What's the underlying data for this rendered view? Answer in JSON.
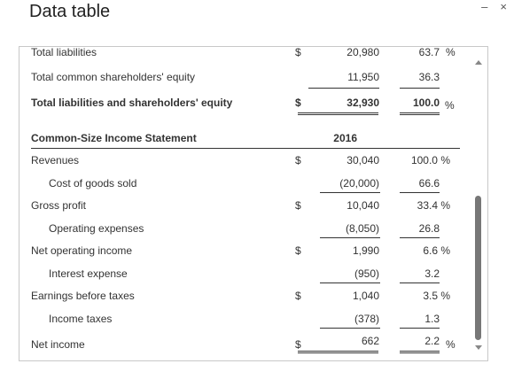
{
  "window": {
    "title": "Data table"
  },
  "top_icons": {
    "minimize": "–",
    "close": "×"
  },
  "balance_rows": [
    {
      "label": "Total liabilities",
      "dollar": "$",
      "value": "20,980",
      "pct": "63.7",
      "pct_sym": "%"
    },
    {
      "label": "Total common shareholders' equity",
      "dollar": "",
      "value": "11,950",
      "pct": "36.3",
      "pct_sym": ""
    },
    {
      "label": "Total liabilities and shareholders' equity",
      "dollar": "$",
      "value": "32,930",
      "pct": "100.0",
      "pct_sym": "%"
    }
  ],
  "income": {
    "header_label": "Common-Size Income Statement",
    "header_year": "2016",
    "rows": [
      {
        "label": "Revenues",
        "dollar": "$",
        "value": "30,040",
        "pct": "100.0 %"
      },
      {
        "label": "Cost of goods sold",
        "dollar": "",
        "value": "(20,000)",
        "pct": "66.6"
      },
      {
        "label": "Gross profit",
        "dollar": "$",
        "value": "10,040",
        "pct": "33.4 %"
      },
      {
        "label": "Operating expenses",
        "dollar": "",
        "value": "(8,050)",
        "pct": "26.8"
      },
      {
        "label": "Net operating income",
        "dollar": "$",
        "value": "1,990",
        "pct": "6.6 %"
      },
      {
        "label": "Interest expense",
        "dollar": "",
        "value": "(950)",
        "pct": "3.2"
      },
      {
        "label": "Earnings before taxes",
        "dollar": "$",
        "value": "1,040",
        "pct": "3.5 %"
      },
      {
        "label": "Income taxes",
        "dollar": "",
        "value": "(378)",
        "pct": "1.3"
      },
      {
        "label": "Net income",
        "dollar": "$",
        "value": "662",
        "pct": "2.2",
        "pct_sym": "%"
      }
    ]
  }
}
